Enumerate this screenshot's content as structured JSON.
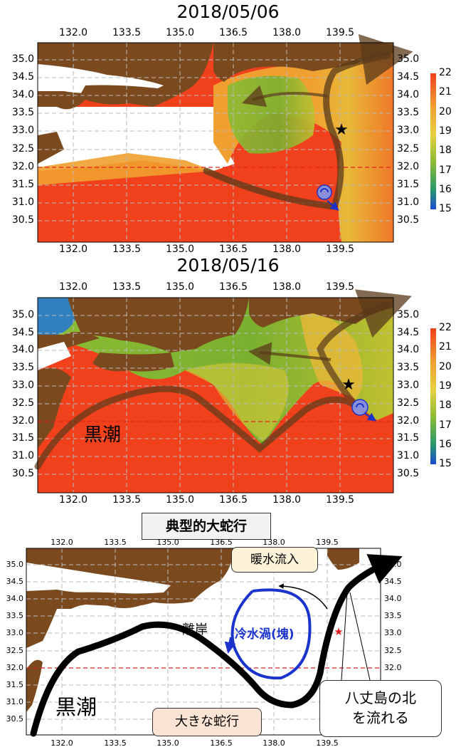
{
  "panel1": {
    "title": "2018/05/06",
    "x_ticks": [
      "132.0",
      "133.5",
      "135.0",
      "136.5",
      "138.0",
      "139.5"
    ],
    "y_ticks": [
      "35.0",
      "34.5",
      "34.0",
      "33.5",
      "33.0",
      "32.5",
      "32.0",
      "31.5",
      "31.0",
      "30.5"
    ],
    "colorbar_ticks": [
      "22",
      "21",
      "20",
      "19",
      "18",
      "17",
      "16",
      "15"
    ]
  },
  "panel2": {
    "title": "2018/05/16",
    "x_ticks": [
      "132.0",
      "133.5",
      "135.0",
      "136.5",
      "138.0",
      "139.5"
    ],
    "y_ticks": [
      "35.0",
      "34.5",
      "34.0",
      "33.5",
      "33.0",
      "32.5",
      "32.0",
      "31.5",
      "31.0",
      "30.5"
    ],
    "colorbar_ticks": [
      "22",
      "21",
      "20",
      "19",
      "18",
      "17",
      "16",
      "15"
    ],
    "kuroshio_label": "黒潮"
  },
  "panel3": {
    "title": "典型的大蛇行",
    "x_ticks": [
      "132.0",
      "133.5",
      "135.0",
      "136.5",
      "138.0",
      "139.5"
    ],
    "y_ticks": [
      "35.0",
      "34.5",
      "34.0",
      "33.5",
      "33.0",
      "32.5",
      "32.0",
      "31.5",
      "31.0",
      "30.5"
    ],
    "kuroshio_label": "黒潮",
    "offshore_label": "離岸",
    "cold_eddy_label": "冷水渦(塊)",
    "warm_inflow_label": "暖水流入",
    "meander_label": "大きな蛇行",
    "hachijo_label_line1": "八丈島の北",
    "hachijo_label_line2": "を流れる"
  },
  "colors": {
    "land": "#7a4a1e",
    "warm": "#f0401c",
    "sea_orange": "#f0a030",
    "sea_green": "#8cbc34",
    "current_arrow": "#5a3a1a",
    "cold_eddy": "#1a33cc"
  }
}
